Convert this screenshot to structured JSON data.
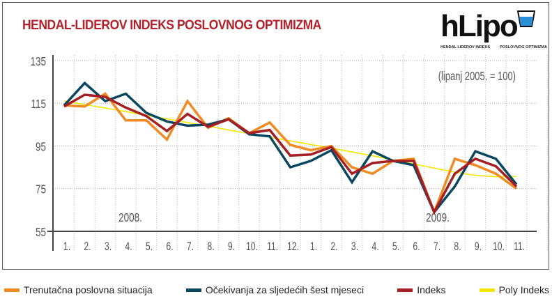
{
  "title": "HENDAL-LIDEROV INDEKS POSLOVNOG OPTIMIZMA",
  "logo": {
    "text": "hLipo",
    "sub1": "HENDAL LIDEROV INDEKS",
    "sub2": "POSLOVNOG OPTIMIZMA"
  },
  "chart_data": {
    "type": "line",
    "annotation": "(lipanj 2005. = 100)",
    "ylim": [
      55,
      135
    ],
    "yticks": [
      "135",
      "115",
      "95",
      "75",
      "55"
    ],
    "year_labels": [
      "2008.",
      "2009."
    ],
    "categories": [
      "1.",
      "2.",
      "3.",
      "4.",
      "5.",
      "6.",
      "7.",
      "8.",
      "9.",
      "10.",
      "11.",
      "12.",
      "1.",
      "2.",
      "3.",
      "4.",
      "5.",
      "6.",
      "7.",
      "8.",
      "9.",
      "10.",
      "11."
    ],
    "grid": true,
    "legend_position": "bottom",
    "series": [
      {
        "name": "Trenutačna poslovna situacija",
        "color": "#f08a24",
        "values": [
          114,
          113.5,
          119.5,
          107,
          107,
          98,
          116,
          103.5,
          108,
          101,
          106,
          95.5,
          93,
          95,
          85,
          82,
          88,
          89,
          64,
          89,
          86,
          82,
          75
        ]
      },
      {
        "name": "Očekivanja za sljedećih šest mjeseci",
        "color": "#0b4660",
        "values": [
          114,
          124.5,
          116,
          119.5,
          110.5,
          106.5,
          104.5,
          105,
          107.5,
          100.5,
          99.5,
          85,
          88,
          93,
          78,
          92.5,
          88,
          86,
          64,
          76,
          92.5,
          89,
          77
        ]
      },
      {
        "name": "Indeks",
        "color": "#a51e22",
        "values": [
          113.5,
          119,
          118,
          113,
          109,
          102,
          110,
          104,
          107.5,
          101,
          102.5,
          90.5,
          91,
          94.5,
          82,
          87,
          88,
          88,
          64,
          82,
          89,
          85.5,
          76
        ]
      },
      {
        "name": "Poly Indeks",
        "color": "#f2e600",
        "values": [
          116,
          114.4,
          112.8,
          111.1,
          109.4,
          107.7,
          106,
          104.3,
          102.5,
          100.8,
          99.1,
          97.4,
          95.7,
          94,
          92.2,
          90.4,
          88.5,
          86.6,
          84.6,
          82.8,
          81.2,
          80.6,
          80.7
        ]
      }
    ]
  }
}
